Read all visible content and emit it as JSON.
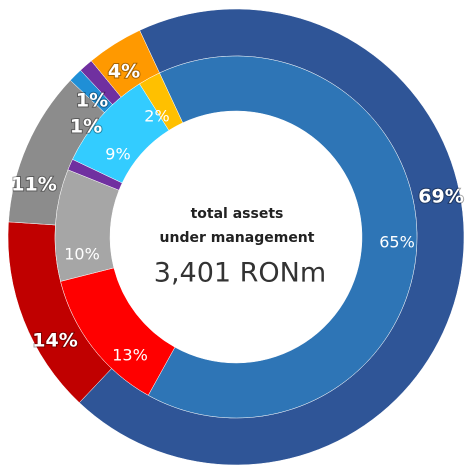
{
  "chart_data": {
    "type": "nested-donut",
    "center_lines": [
      "total assets",
      "under management"
    ],
    "center_value": "3,401 RONm",
    "rings": [
      {
        "values": [
          69,
          14,
          11,
          1,
          1,
          4
        ],
        "value_labels": [
          "69%",
          "14%",
          "11%",
          "1%",
          "1%",
          "4%"
        ],
        "colors": [
          "#2f5597",
          "#c00000",
          "#8c8c8c",
          "#1f8fd6",
          "#7030a0",
          "#ff9900"
        ]
      },
      {
        "values": [
          65,
          13,
          10,
          1,
          9,
          2
        ],
        "value_labels": [
          "65%",
          "13%",
          "10%",
          "1%",
          "9%",
          "2%"
        ],
        "colors": [
          "#2e75b6",
          "#ff0000",
          "#a6a6a6",
          "#7030a0",
          "#33ccff",
          "#ffc000"
        ]
      }
    ]
  }
}
